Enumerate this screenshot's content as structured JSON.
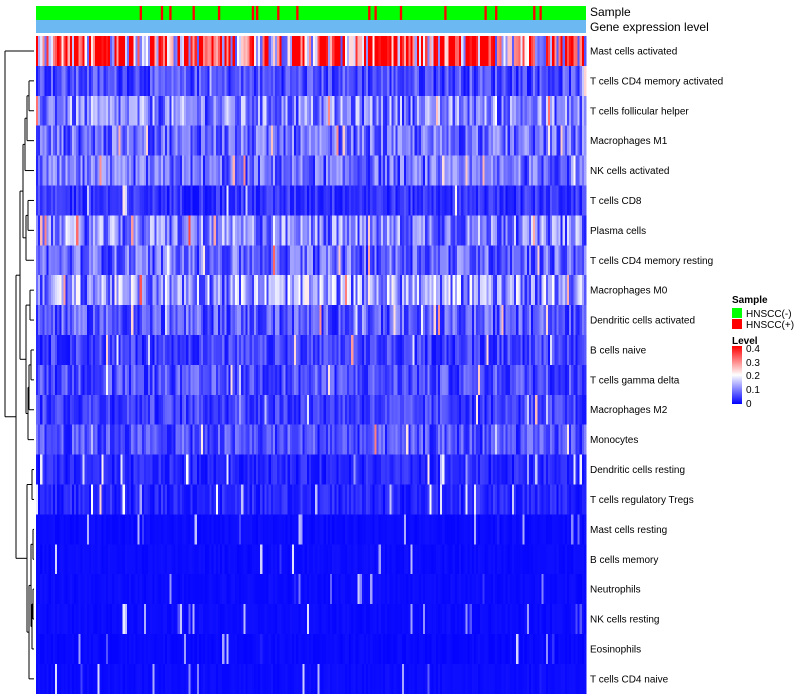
{
  "chart_data": {
    "type": "heatmap",
    "annotation_tracks": [
      {
        "label": "Sample",
        "kind": "categorical"
      },
      {
        "label": "Gene expression level",
        "kind": "continuous"
      }
    ],
    "rows": [
      {
        "name": "Mast cells activated",
        "mean": 0.3
      },
      {
        "name": "T cells CD4 memory activated",
        "mean": 0.06
      },
      {
        "name": "T cells follicular helper",
        "mean": 0.1
      },
      {
        "name": "Macrophages M1",
        "mean": 0.08
      },
      {
        "name": "NK cells activated",
        "mean": 0.08
      },
      {
        "name": "T cells CD8",
        "mean": 0.04
      },
      {
        "name": "Plasma cells",
        "mean": 0.1
      },
      {
        "name": "T cells CD4 memory resting",
        "mean": 0.08
      },
      {
        "name": "Macrophages M0",
        "mean": 0.12
      },
      {
        "name": "Dendritic cells activated",
        "mean": 0.07
      },
      {
        "name": "B cells naive",
        "mean": 0.05
      },
      {
        "name": "T cells gamma delta",
        "mean": 0.06
      },
      {
        "name": "Macrophages M2",
        "mean": 0.05
      },
      {
        "name": "Monocytes",
        "mean": 0.06
      },
      {
        "name": "Dendritic cells resting",
        "mean": 0.03
      },
      {
        "name": "T cells regulatory  Tregs",
        "mean": 0.03
      },
      {
        "name": "Mast cells resting",
        "mean": 0.01
      },
      {
        "name": "B cells memory",
        "mean": 0.01
      },
      {
        "name": "Neutrophils",
        "mean": 0.01
      },
      {
        "name": "NK cells resting",
        "mean": 0.01
      },
      {
        "name": "Eosinophils",
        "mean": 0.005
      },
      {
        "name": "T cells CD4 naive",
        "mean": 0.01
      }
    ],
    "n_samples": 260,
    "fraction_hnscc_positive": 0.1,
    "value_range": [
      0,
      0.4
    ],
    "legends": {
      "sample": {
        "title": "Sample",
        "entries": [
          {
            "label": "HNSCC(-)",
            "color": "#00ff00"
          },
          {
            "label": "HNSCC(+)",
            "color": "#ff0000"
          }
        ]
      },
      "level": {
        "title": "Level",
        "ticks": [
          "0.4",
          "0.3",
          "0.2",
          "0.1",
          "0"
        ]
      }
    },
    "colors": {
      "low": "#0000ff",
      "mid": "#ffffff",
      "high": "#ff0000",
      "expression_track": "#6cb8f2"
    }
  }
}
